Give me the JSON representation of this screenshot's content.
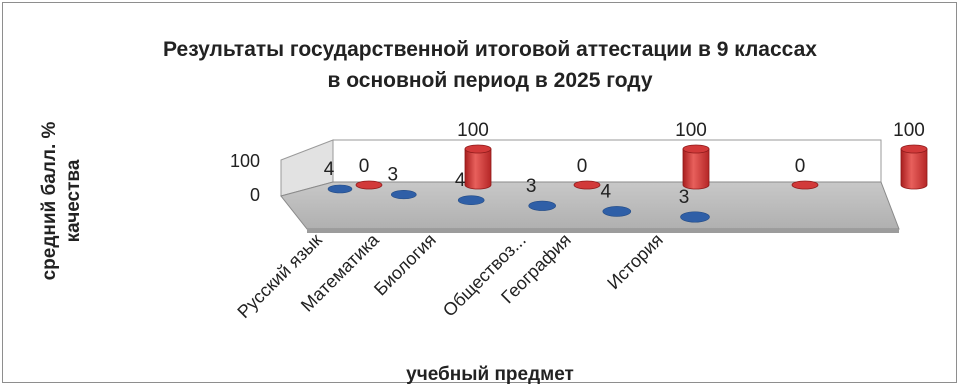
{
  "chart_data": {
    "type": "bar",
    "title_lines": [
      "Результаты государственной итоговой аттестации в 9 классах",
      "в основной период в 2025 году"
    ],
    "xlabel": "учебный предмет",
    "ylabel_lines": [
      "средний балл. %",
      "качества"
    ],
    "categories": [
      "Русский язык",
      "Математика",
      "Биология",
      "Обществоз...",
      "География",
      "История"
    ],
    "series": [
      {
        "values": [
          4,
          3,
          4,
          3,
          4,
          3
        ],
        "labels": [
          "4",
          "3",
          "4",
          "3",
          "4",
          "3"
        ],
        "color": "#2f5fa7"
      },
      {
        "values": [
          0,
          100,
          0,
          100,
          0,
          100
        ],
        "labels": [
          "0",
          "100",
          "0",
          "100",
          "0",
          "100"
        ],
        "color": "#d23a3a"
      }
    ],
    "y_ticks": [
      "100",
      "0"
    ],
    "ylim": [
      0,
      100
    ],
    "grid": false,
    "legend": "none",
    "style": "3d-cylinder"
  }
}
